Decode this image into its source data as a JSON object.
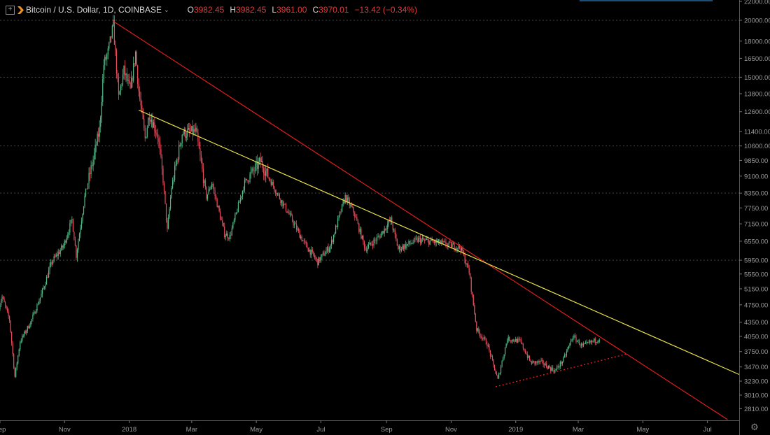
{
  "header": {
    "symbol": "Bitcoin / U.S. Dollar, 1D, COINBASE",
    "open_label": "O",
    "open": "3982.45",
    "high_label": "H",
    "high": "3982.45",
    "low_label": "L",
    "low": "3961.00",
    "close_label": "C",
    "close": "3970.01",
    "change": "−13.42 (−0.34%)"
  },
  "colors": {
    "background": "#000000",
    "up": "#53b987",
    "down": "#eb4d5c",
    "trend_red": "#e01e1e",
    "trend_yellow": "#e8e24a",
    "axis_text": "#9a9a9a",
    "grid": "#444444"
  },
  "icons": {
    "add": "plus-square-icon",
    "exchange": "coinbase-logo-icon",
    "settings": "gear-icon"
  },
  "chart_data": {
    "type": "candlestick",
    "x_start": "2017-09-01",
    "x_end": "2019-07-31",
    "y_scale": "log",
    "ylim": [
      2650,
      22000
    ],
    "y_ticks": [
      22000,
      20000,
      18000,
      16500,
      15000,
      13800,
      12600,
      11400,
      10600,
      9850,
      9100,
      8350,
      7750,
      7150,
      6550,
      5950,
      5550,
      5150,
      4750,
      4350,
      4050,
      3750,
      3470,
      3230,
      3010,
      2810
    ],
    "x_ticks": [
      {
        "label": "Sep",
        "date": "2017-09-01"
      },
      {
        "label": "Nov",
        "date": "2017-11-01"
      },
      {
        "label": "2018",
        "date": "2018-01-01"
      },
      {
        "label": "Mar",
        "date": "2018-03-01"
      },
      {
        "label": "May",
        "date": "2018-05-01"
      },
      {
        "label": "Jul",
        "date": "2018-07-01"
      },
      {
        "label": "Sep",
        "date": "2018-09-01"
      },
      {
        "label": "Nov",
        "date": "2018-11-01"
      },
      {
        "label": "2019",
        "date": "2019-01-01"
      },
      {
        "label": "Mar",
        "date": "2019-03-01"
      },
      {
        "label": "May",
        "date": "2019-05-01"
      },
      {
        "label": "Jul",
        "date": "2019-07-01"
      }
    ],
    "gridlines": [
      20000,
      15000,
      10600,
      8350,
      5950
    ],
    "price_path": [
      [
        "2017-08-31",
        4700
      ],
      [
        "2017-09-03",
        4950
      ],
      [
        "2017-09-10",
        4400
      ],
      [
        "2017-09-15",
        3300
      ],
      [
        "2017-09-20",
        3950
      ],
      [
        "2017-09-30",
        4350
      ],
      [
        "2017-10-10",
        5000
      ],
      [
        "2017-10-20",
        5900
      ],
      [
        "2017-10-31",
        6400
      ],
      [
        "2017-11-08",
        7300
      ],
      [
        "2017-11-12",
        6100
      ],
      [
        "2017-11-20",
        8200
      ],
      [
        "2017-11-28",
        9900
      ],
      [
        "2017-12-04",
        11500
      ],
      [
        "2017-12-08",
        16000
      ],
      [
        "2017-12-12",
        17000
      ],
      [
        "2017-12-17",
        19500
      ],
      [
        "2017-12-22",
        13500
      ],
      [
        "2017-12-27",
        15500
      ],
      [
        "2018-01-02",
        14000
      ],
      [
        "2018-01-07",
        17000
      ],
      [
        "2018-01-10",
        14000
      ],
      [
        "2018-01-16",
        11000
      ],
      [
        "2018-01-20",
        12500
      ],
      [
        "2018-01-28",
        11200
      ],
      [
        "2018-02-02",
        8900
      ],
      [
        "2018-02-06",
        6900
      ],
      [
        "2018-02-10",
        8600
      ],
      [
        "2018-02-20",
        11300
      ],
      [
        "2018-03-05",
        11400
      ],
      [
        "2018-03-15",
        8200
      ],
      [
        "2018-03-20",
        8800
      ],
      [
        "2018-04-01",
        6800
      ],
      [
        "2018-04-06",
        6700
      ],
      [
        "2018-04-20",
        8800
      ],
      [
        "2018-05-05",
        9800
      ],
      [
        "2018-05-20",
        8400
      ],
      [
        "2018-06-01",
        7500
      ],
      [
        "2018-06-15",
        6500
      ],
      [
        "2018-06-28",
        5900
      ],
      [
        "2018-07-10",
        6400
      ],
      [
        "2018-07-24",
        8200
      ],
      [
        "2018-08-01",
        7600
      ],
      [
        "2018-08-12",
        6300
      ],
      [
        "2018-08-25",
        6700
      ],
      [
        "2018-09-05",
        7300
      ],
      [
        "2018-09-12",
        6300
      ],
      [
        "2018-10-01",
        6600
      ],
      [
        "2018-10-20",
        6500
      ],
      [
        "2018-11-10",
        6350
      ],
      [
        "2018-11-18",
        5600
      ],
      [
        "2018-11-25",
        4200
      ],
      [
        "2018-12-05",
        3900
      ],
      [
        "2018-12-15",
        3250
      ],
      [
        "2018-12-24",
        4000
      ],
      [
        "2019-01-05",
        3950
      ],
      [
        "2019-01-15",
        3550
      ],
      [
        "2019-01-25",
        3550
      ],
      [
        "2019-02-07",
        3400
      ],
      [
        "2019-02-15",
        3600
      ],
      [
        "2019-02-24",
        4050
      ],
      [
        "2019-03-05",
        3850
      ],
      [
        "2019-03-15",
        3950
      ],
      [
        "2019-03-21",
        4000
      ]
    ],
    "trendlines": [
      {
        "name": "red-downtrend",
        "from": [
          "2017-12-17",
          19900
        ],
        "to": [
          "2019-07-20",
          2660
        ],
        "color": "#e01e1e",
        "style": "solid"
      },
      {
        "name": "yellow-downtrend",
        "from": [
          "2018-01-10",
          12700
        ],
        "to": [
          "2019-07-31",
          3340
        ],
        "color": "#e8e24a",
        "style": "solid"
      },
      {
        "name": "red-support",
        "from": [
          "2018-12-13",
          3140
        ],
        "to": [
          "2019-04-15",
          3700
        ],
        "color": "#e01e1e",
        "style": "dotted"
      }
    ]
  }
}
